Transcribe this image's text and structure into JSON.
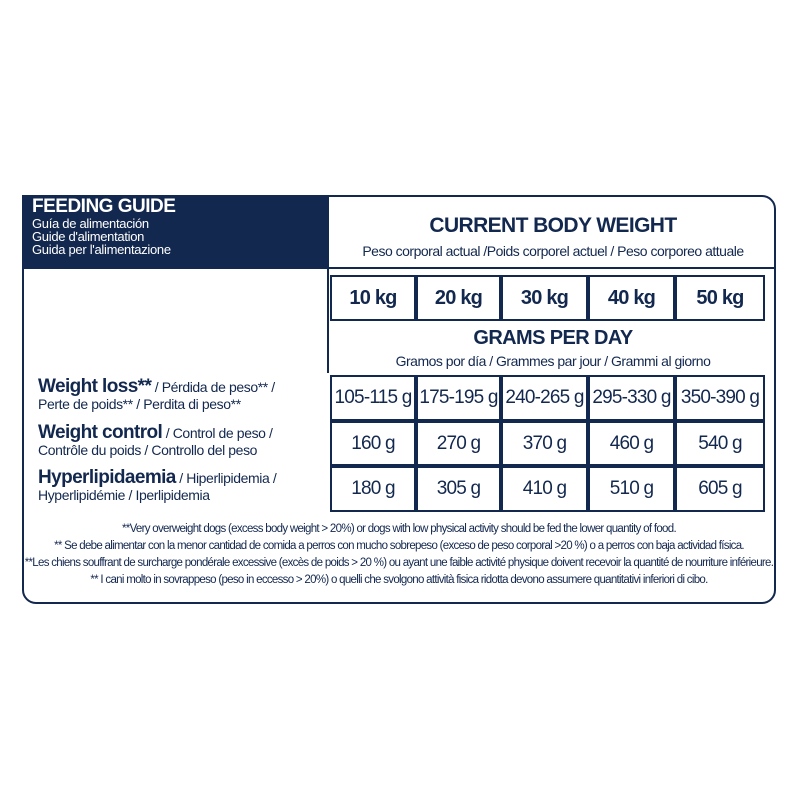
{
  "header": {
    "title": "FEEDING GUIDE",
    "subtitles": [
      "Guía de alimentación",
      "Guide d'alimentation",
      "Guida per l'alimentazione"
    ]
  },
  "weight_section": {
    "title": "CURRENT BODY WEIGHT",
    "subtitle": "Peso corporal actual /Poids corporel actuel / Peso corporeo attuale"
  },
  "weights": [
    "10 kg",
    "20 kg",
    "30 kg",
    "40 kg",
    "50 kg"
  ],
  "grams_section": {
    "title": "GRAMS PER DAY",
    "subtitle": "Gramos por día / Grammes par jour / Grammi al giorno"
  },
  "rows": [
    {
      "name": "Weight loss**",
      "rest1": " / Pérdida de peso** /",
      "rest2": "Perte de poids** / Perdita di peso**",
      "values": [
        "105-115 g",
        "175-195 g",
        "240-265 g",
        "295-330 g",
        "350-390 g"
      ]
    },
    {
      "name": "Weight control",
      "rest1": " / Control de peso /",
      "rest2": "Contrôle du poids / Controllo del peso",
      "values": [
        "160 g",
        "270 g",
        "370 g",
        "460 g",
        "540 g"
      ]
    },
    {
      "name": "Hyperlipidaemia",
      "rest1": " / Hiperlipidemia /",
      "rest2": "Hyperlipidémie / Iperlipidemia",
      "values": [
        "180 g",
        "305 g",
        "410 g",
        "510 g",
        "605 g"
      ]
    }
  ],
  "footnotes": [
    "**Very overweight dogs (excess body weight > 20%) or dogs with low physical activity should be fed the lower quantity of food.",
    "** Se debe alimentar con la menor cantidad de comida a perros con mucho sobrepeso (exceso de peso corporal >20 %) o a perros con baja actividad física.",
    "**Les chiens souffrant de surcharge pondérale excessive (excès de poids > 20 %) ou ayant une faible activité physique doivent recevoir la quantité de nourriture inférieure.",
    "** I cani molto in sovrappeso (peso in eccesso > 20%) o quelli che svolgono attività fisica ridotta devono assumere quantitativi inferiori di cibo."
  ],
  "colors": {
    "navy": "#13284f"
  }
}
